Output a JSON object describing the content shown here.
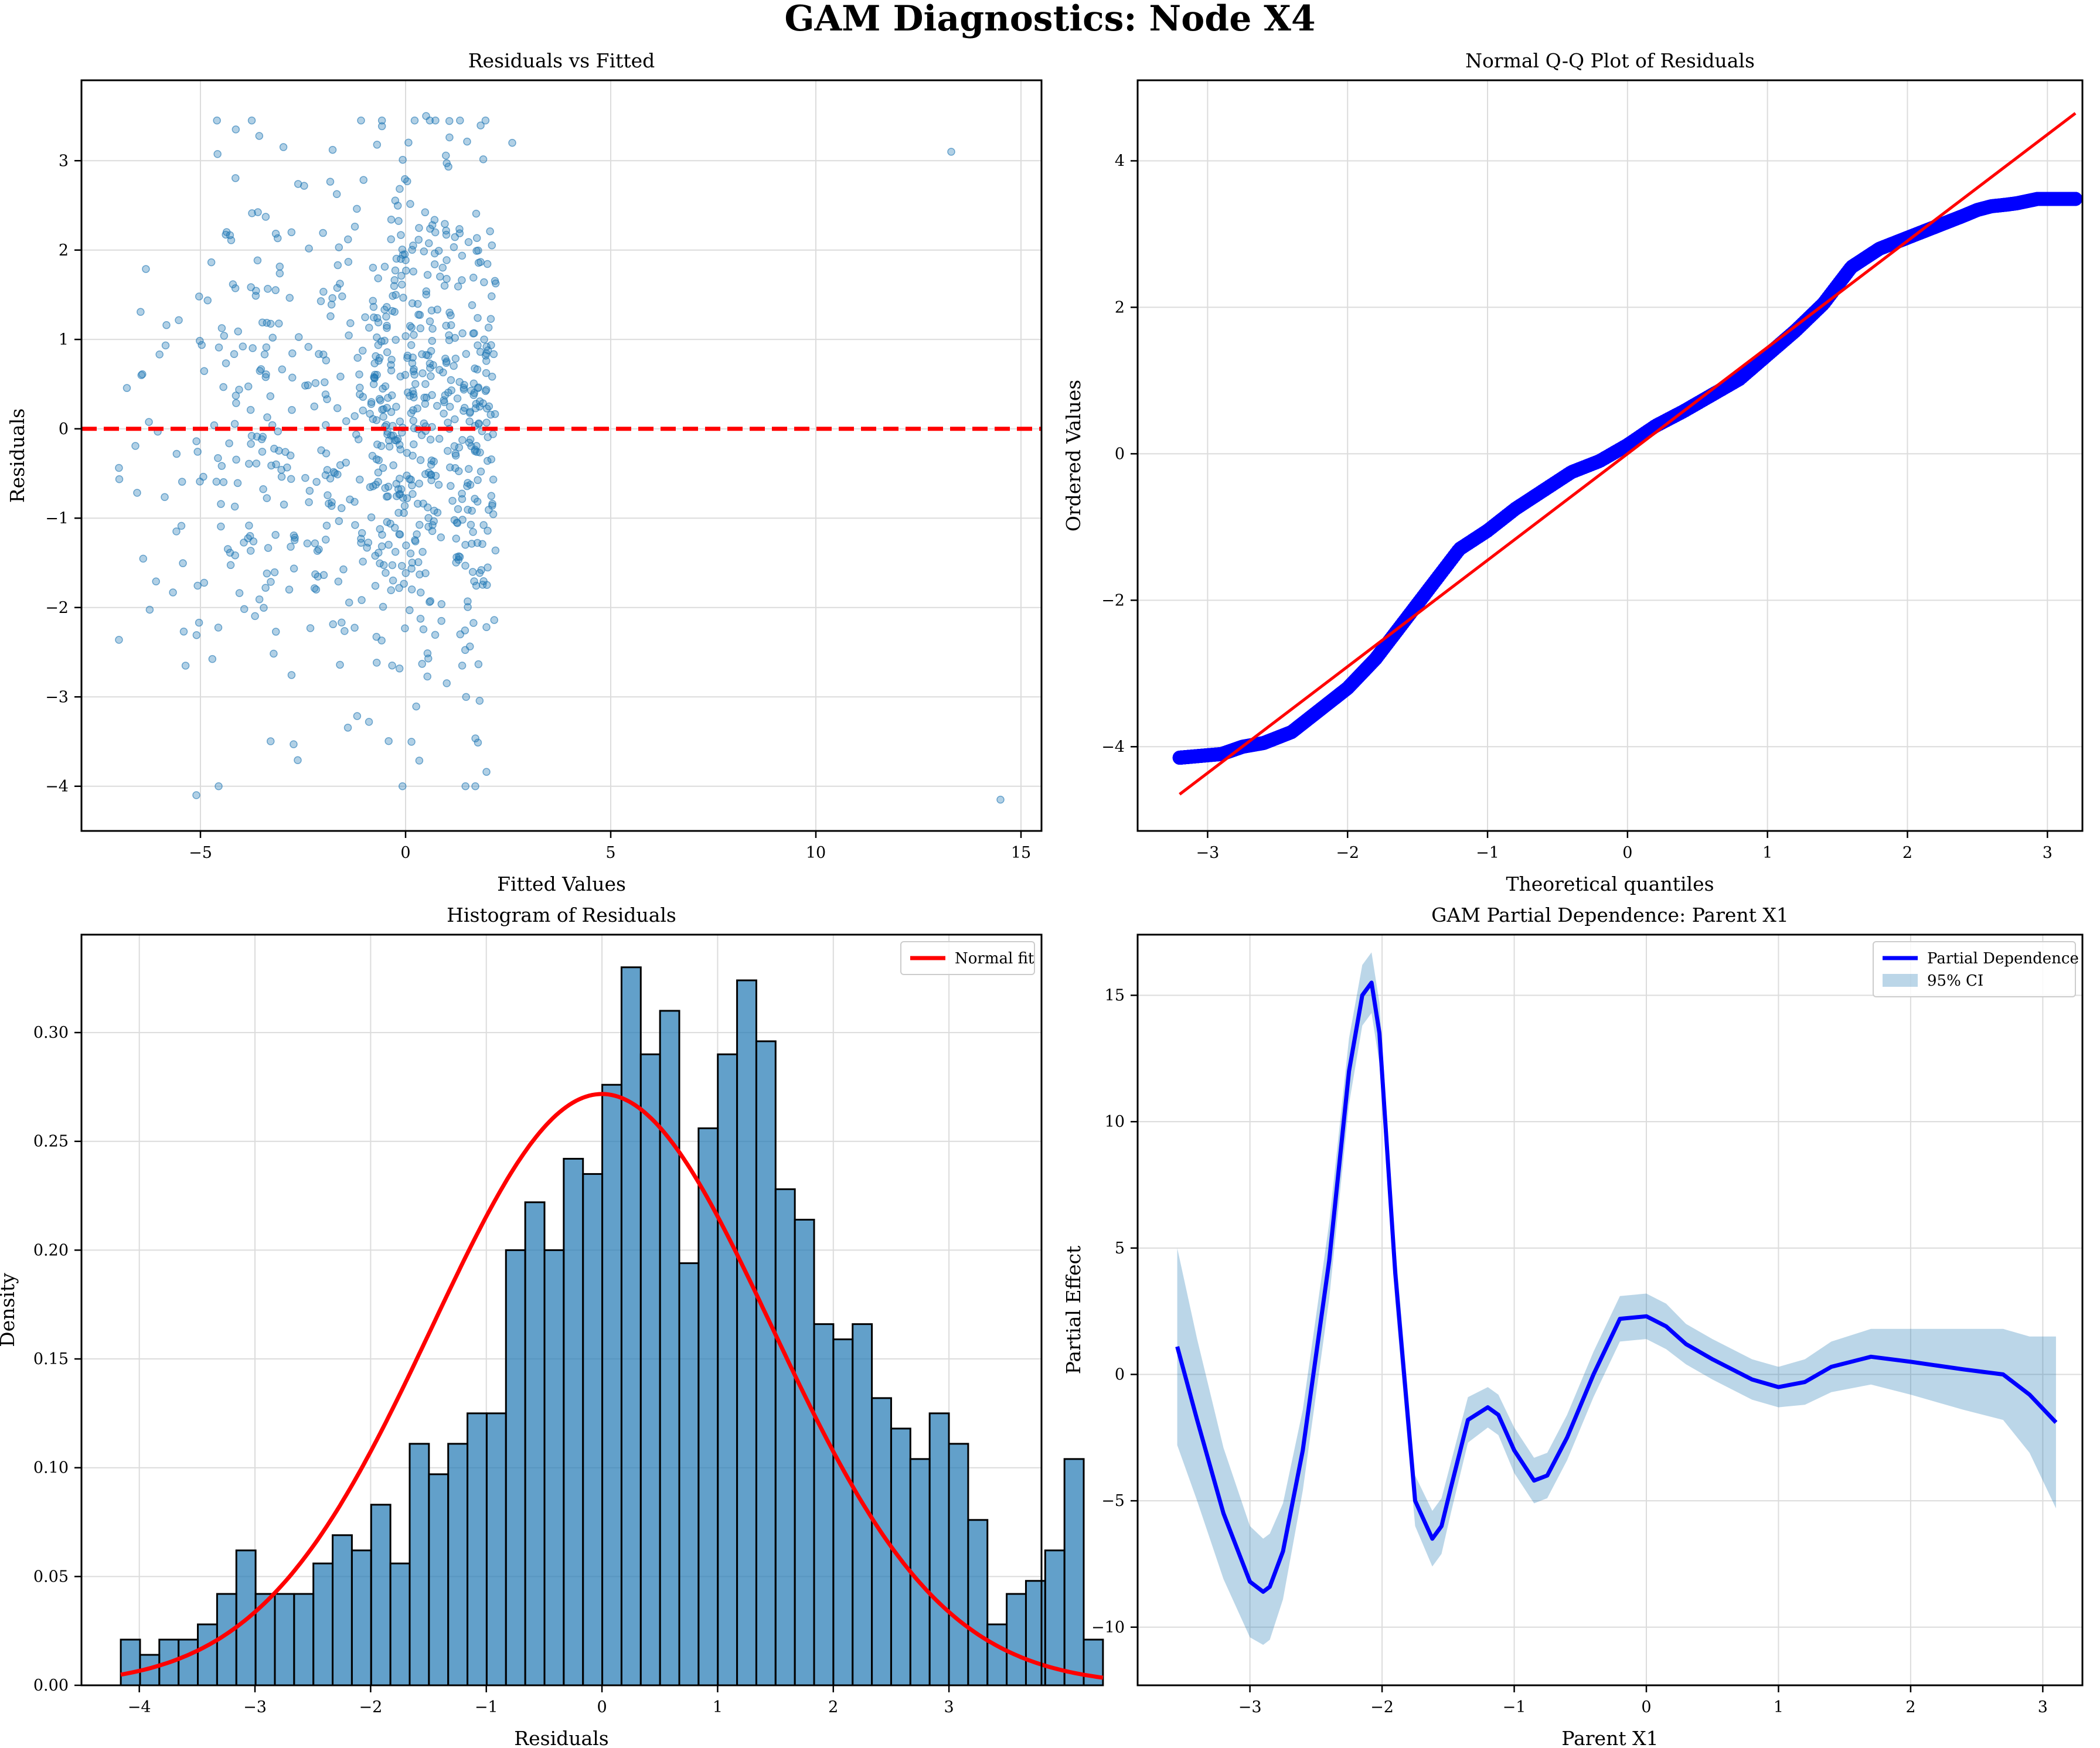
{
  "figure": {
    "suptitle": "GAM Diagnostics: Node X4"
  },
  "colors": {
    "scatter": "#1f77b4",
    "histogram": "#1f77b4",
    "reference": "#ff0000",
    "qq_points": "#0000ff",
    "pd_line": "#0000ff",
    "ci_fill": "#1f77b4"
  },
  "chart_data": [
    {
      "type": "scatter",
      "title": "Residuals vs Fitted",
      "xlabel": "Fitted Values",
      "ylabel": "Residuals",
      "xlim": [
        -7.9,
        15.5
      ],
      "ylim": [
        -4.5,
        3.9
      ],
      "xticks": [
        -5,
        0,
        5,
        10,
        15
      ],
      "yticks": [
        -4,
        -3,
        -2,
        -1,
        0,
        1,
        2,
        3
      ],
      "grid": true,
      "reference_line": {
        "y": 0,
        "style": "dashed"
      },
      "clusters": [
        {
          "x_range": [
            -7.0,
            -4.6
          ],
          "n": 45
        },
        {
          "x_range": [
            -4.6,
            -0.8
          ],
          "n": 240
        },
        {
          "x_range": [
            -0.8,
            0.4
          ],
          "n": 220
        },
        {
          "x_range": [
            0.4,
            2.2
          ],
          "n": 280
        }
      ],
      "outliers": [
        {
          "x": 13.3,
          "y": 3.1
        },
        {
          "x": 14.5,
          "y": -4.15
        },
        {
          "x": 2.6,
          "y": 3.2
        },
        {
          "x": -5.1,
          "y": -4.1
        },
        {
          "x": 0.5,
          "y": 3.5
        },
        {
          "x": 1.7,
          "y": -4.0
        }
      ]
    },
    {
      "type": "scatter",
      "title": "Normal Q-Q Plot of Residuals",
      "xlabel": "Theoretical quantiles",
      "ylabel": "Ordered Values",
      "xlim": [
        -3.5,
        3.25
      ],
      "ylim": [
        -5.15,
        5.1
      ],
      "xticks": [
        -3,
        -2,
        -1,
        0,
        1,
        2,
        3
      ],
      "yticks": [
        -4,
        -2,
        0,
        2,
        4
      ],
      "grid": true,
      "n_points": 1000,
      "fit_line": {
        "x": [
          -3.2,
          3.2
        ],
        "y": [
          -4.65,
          4.65
        ]
      },
      "quantile_curve": {
        "x": [
          -3.2,
          -2.9,
          -2.75,
          -2.6,
          -2.4,
          -2.2,
          -2.0,
          -1.8,
          -1.6,
          -1.4,
          -1.2,
          -1.0,
          -0.8,
          -0.6,
          -0.4,
          -0.2,
          0.0,
          0.2,
          0.4,
          0.6,
          0.8,
          1.0,
          1.2,
          1.4,
          1.6,
          1.8,
          2.0,
          2.2,
          2.4,
          2.5,
          2.6,
          2.7,
          2.78,
          2.93,
          3.2
        ],
        "y": [
          -4.15,
          -4.1,
          -4.0,
          -3.95,
          -3.8,
          -3.5,
          -3.2,
          -2.8,
          -2.3,
          -1.8,
          -1.3,
          -1.05,
          -0.75,
          -0.5,
          -0.25,
          -0.1,
          0.12,
          0.38,
          0.58,
          0.8,
          1.02,
          1.35,
          1.68,
          2.05,
          2.55,
          2.8,
          2.95,
          3.1,
          3.25,
          3.33,
          3.38,
          3.4,
          3.42,
          3.48,
          3.48
        ]
      }
    },
    {
      "type": "bar",
      "title": "Histogram of Residuals",
      "xlabel": "Residuals",
      "ylabel": "Density",
      "xlim": [
        -4.5,
        3.8
      ],
      "ylim": [
        0,
        0.345
      ],
      "xticks": [
        -4,
        -3,
        -2,
        -1,
        0,
        1,
        2,
        3
      ],
      "yticks": [
        0.0,
        0.05,
        0.1,
        0.15,
        0.2,
        0.25,
        0.3
      ],
      "grid": true,
      "bin_start": -4.16,
      "bin_width": 0.1665,
      "values": [
        0.021,
        0.014,
        0.021,
        0.021,
        0.028,
        0.042,
        0.062,
        0.042,
        0.042,
        0.042,
        0.056,
        0.069,
        0.062,
        0.083,
        0.056,
        0.111,
        0.097,
        0.111,
        0.125,
        0.125,
        0.2,
        0.222,
        0.2,
        0.242,
        0.235,
        0.276,
        0.33,
        0.29,
        0.31,
        0.194,
        0.256,
        0.29,
        0.324,
        0.296,
        0.228,
        0.214,
        0.166,
        0.159,
        0.166,
        0.132,
        0.118,
        0.104,
        0.125,
        0.111,
        0.076,
        0.028,
        0.042,
        0.048,
        0.062,
        0.104,
        0.021
      ],
      "fit": {
        "name": "Normal fit",
        "mean": 0.0,
        "sd": 1.468
      },
      "legend": {
        "entries": [
          "Normal fit"
        ],
        "placement": "upper right"
      }
    },
    {
      "type": "line",
      "title": "GAM Partial Dependence: Parent X1",
      "xlabel": "Parent X1",
      "ylabel": "Partial Effect",
      "xlim": [
        -3.85,
        3.3
      ],
      "ylim": [
        -12.3,
        17.4
      ],
      "xticks": [
        -3,
        -2,
        -1,
        0,
        1,
        2,
        3
      ],
      "yticks": [
        -10,
        -5,
        0,
        5,
        10,
        15
      ],
      "grid": true,
      "series": [
        {
          "name": "Partial Dependence",
          "x": [
            -3.55,
            -3.4,
            -3.2,
            -3.0,
            -2.9,
            -2.85,
            -2.75,
            -2.6,
            -2.4,
            -2.25,
            -2.15,
            -2.08,
            -2.02,
            -1.9,
            -1.75,
            -1.62,
            -1.55,
            -1.48,
            -1.35,
            -1.2,
            -1.12,
            -1.0,
            -0.85,
            -0.75,
            -0.6,
            -0.4,
            -0.2,
            0.0,
            0.15,
            0.3,
            0.5,
            0.8,
            1.0,
            1.2,
            1.4,
            1.7,
            2.0,
            2.4,
            2.7,
            2.9,
            3.1
          ],
          "y": [
            1.1,
            -1.8,
            -5.5,
            -8.2,
            -8.6,
            -8.4,
            -7.0,
            -3.0,
            4.5,
            12.0,
            15.0,
            15.5,
            13.5,
            4.0,
            -5.0,
            -6.5,
            -6.0,
            -4.5,
            -1.8,
            -1.3,
            -1.6,
            -3.0,
            -4.2,
            -4.0,
            -2.5,
            0.0,
            2.2,
            2.3,
            1.9,
            1.2,
            0.6,
            -0.2,
            -0.5,
            -0.3,
            0.3,
            0.7,
            0.5,
            0.2,
            0.0,
            -0.8,
            -1.9
          ],
          "ci_halfwidth": [
            3.9,
            3.2,
            2.6,
            2.2,
            2.1,
            2.1,
            1.9,
            1.6,
            1.5,
            1.3,
            1.2,
            1.2,
            1.2,
            1.1,
            1.0,
            1.1,
            1.1,
            1.0,
            0.9,
            0.8,
            0.8,
            0.9,
            0.9,
            0.9,
            0.9,
            0.9,
            0.9,
            0.9,
            0.9,
            0.8,
            0.8,
            0.8,
            0.8,
            0.9,
            1.0,
            1.1,
            1.3,
            1.6,
            1.8,
            2.3,
            3.4
          ]
        }
      ],
      "legend": {
        "entries": [
          "Partial Dependence",
          "95% CI"
        ],
        "placement": "upper right"
      }
    }
  ]
}
